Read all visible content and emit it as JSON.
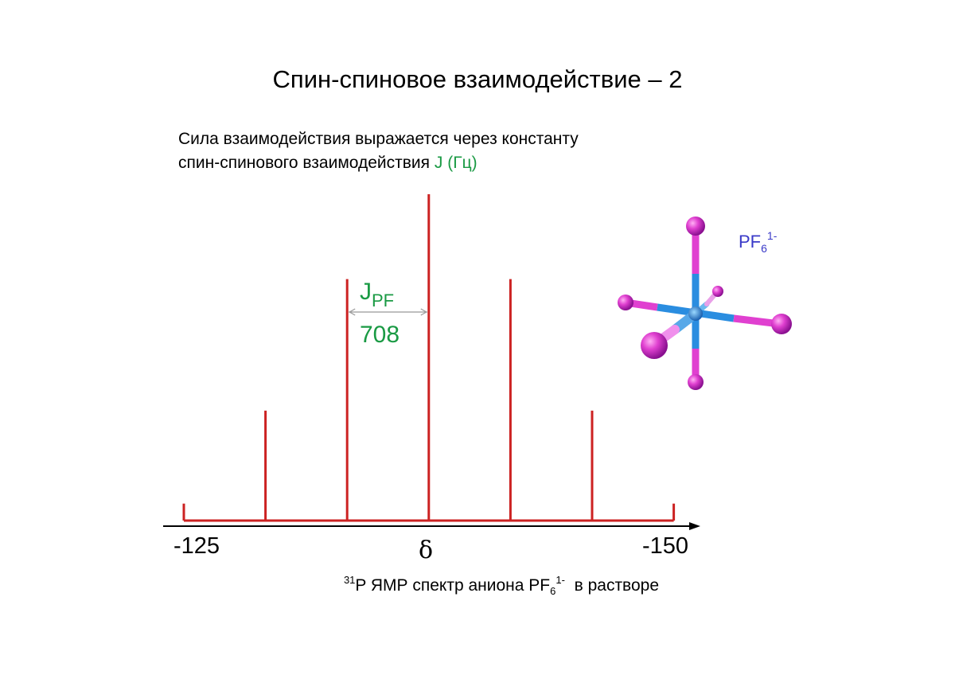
{
  "page": {
    "title": "Спин-спиновое взаимодействие – 2",
    "intro_line1": "Сила взаимодействия выражается через константу",
    "intro_line2": "спин-спинового взаимодействия ",
    "intro_j": "J (Гц)"
  },
  "caption": {
    "iso": "31",
    "text": "P ЯМР спектр аниона PF",
    "sub": "6",
    "sup": "1-",
    "tail": "  в растворе"
  },
  "molecule": {
    "formula_main": "PF",
    "formula_sub": "6",
    "formula_sup": "1-",
    "center_color": "#2a8de0",
    "ligand_color": "#e040d0"
  },
  "colors": {
    "spectrum": "#cc2222",
    "accent_green": "#1a9a44",
    "axis": "#000000"
  },
  "chart_data": {
    "type": "bar",
    "title": "",
    "xlabel": "δ",
    "ylabel": "",
    "x_tick_labels": [
      "-125",
      "-150"
    ],
    "xlim": [
      -125,
      -150
    ],
    "axis_direction": "right",
    "lines": [
      {
        "x": -125.0,
        "height": 0.052
      },
      {
        "x": -130.0,
        "height": 0.337
      },
      {
        "x": -135.0,
        "height": 0.74
      },
      {
        "x": -140.0,
        "height": 1.0
      },
      {
        "x": -145.0,
        "height": 0.74
      },
      {
        "x": -150.0,
        "height": 0.337
      },
      {
        "x": -155.0,
        "height": 0.052
      }
    ],
    "annotation": {
      "label": "J",
      "label_sub": "PF",
      "value": "708",
      "from_line": 2,
      "to_line": 3
    }
  }
}
